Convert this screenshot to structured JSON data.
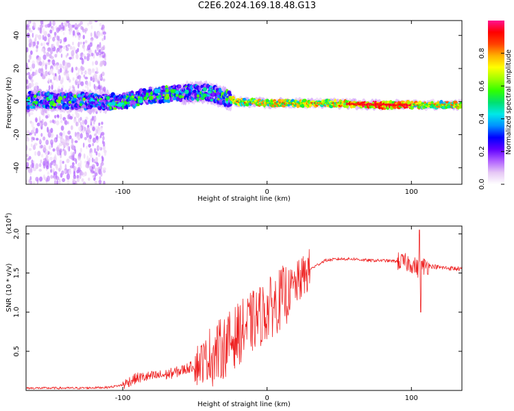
{
  "title": "C2E6.2024.169.18.48.G13",
  "chart_data": [
    {
      "type": "heatmap",
      "title": "",
      "xlabel": "Height of straight line (km)",
      "ylabel": "Frequency (Hz)",
      "xlim": [
        -167,
        135
      ],
      "ylim": [
        -50,
        49
      ],
      "x_ticks": [
        -100,
        0,
        100
      ],
      "y_ticks": [
        -40,
        -20,
        0,
        20,
        40
      ],
      "grid": false,
      "colorbar": {
        "label": "Normalized spectral amplitude",
        "range": [
          0,
          1
        ],
        "ticks": [
          0.0,
          0.2,
          0.4,
          0.6,
          0.8
        ],
        "colormap": [
          "#ffffff",
          "#e6c8f5",
          "#b060ff",
          "#6000ff",
          "#0000ff",
          "#0090ff",
          "#00e8e8",
          "#00e070",
          "#30ff00",
          "#a0ff00",
          "#ffff00",
          "#ffb000",
          "#ff4000",
          "#ff0000",
          "#ff1090"
        ]
      },
      "ridge_center_hz": [
        {
          "x": -165,
          "f": 1
        },
        {
          "x": -120,
          "f": 0
        },
        {
          "x": -100,
          "f": 0
        },
        {
          "x": -80,
          "f": 4
        },
        {
          "x": -60,
          "f": 5
        },
        {
          "x": -45,
          "f": 6
        },
        {
          "x": -35,
          "f": 4
        },
        {
          "x": -20,
          "f": 0
        },
        {
          "x": 0,
          "f": -1
        },
        {
          "x": 40,
          "f": -1
        },
        {
          "x": 80,
          "f": -2
        },
        {
          "x": 135,
          "f": -2
        }
      ]
    },
    {
      "type": "line",
      "title": "",
      "xlabel": "Height of straight line (km)",
      "ylabel": "SNR (10 * v/v)",
      "y_scale_label": "(x10^4)",
      "xlim": [
        -167,
        135
      ],
      "ylim": [
        0,
        2.1
      ],
      "x_ticks": [
        -100,
        0,
        100
      ],
      "y_ticks": [
        0.5,
        1.0,
        1.5,
        2.0
      ],
      "grid": false,
      "series": [
        {
          "color": "#ee2222",
          "x": [
            -167,
            -150,
            -130,
            -110,
            -100,
            -95,
            -90,
            -80,
            -70,
            -60,
            -50,
            -40,
            -30,
            -20,
            -10,
            0,
            10,
            20,
            30,
            40,
            50,
            60,
            70,
            80,
            90,
            100,
            105,
            110,
            120,
            135
          ],
          "y": [
            0.03,
            0.03,
            0.03,
            0.04,
            0.07,
            0.12,
            0.16,
            0.18,
            0.2,
            0.25,
            0.32,
            0.42,
            0.55,
            0.72,
            0.88,
            1.02,
            1.18,
            1.35,
            1.55,
            1.66,
            1.68,
            1.68,
            1.66,
            1.66,
            1.65,
            1.62,
            1.55,
            1.6,
            1.57,
            1.55
          ]
        }
      ]
    }
  ]
}
